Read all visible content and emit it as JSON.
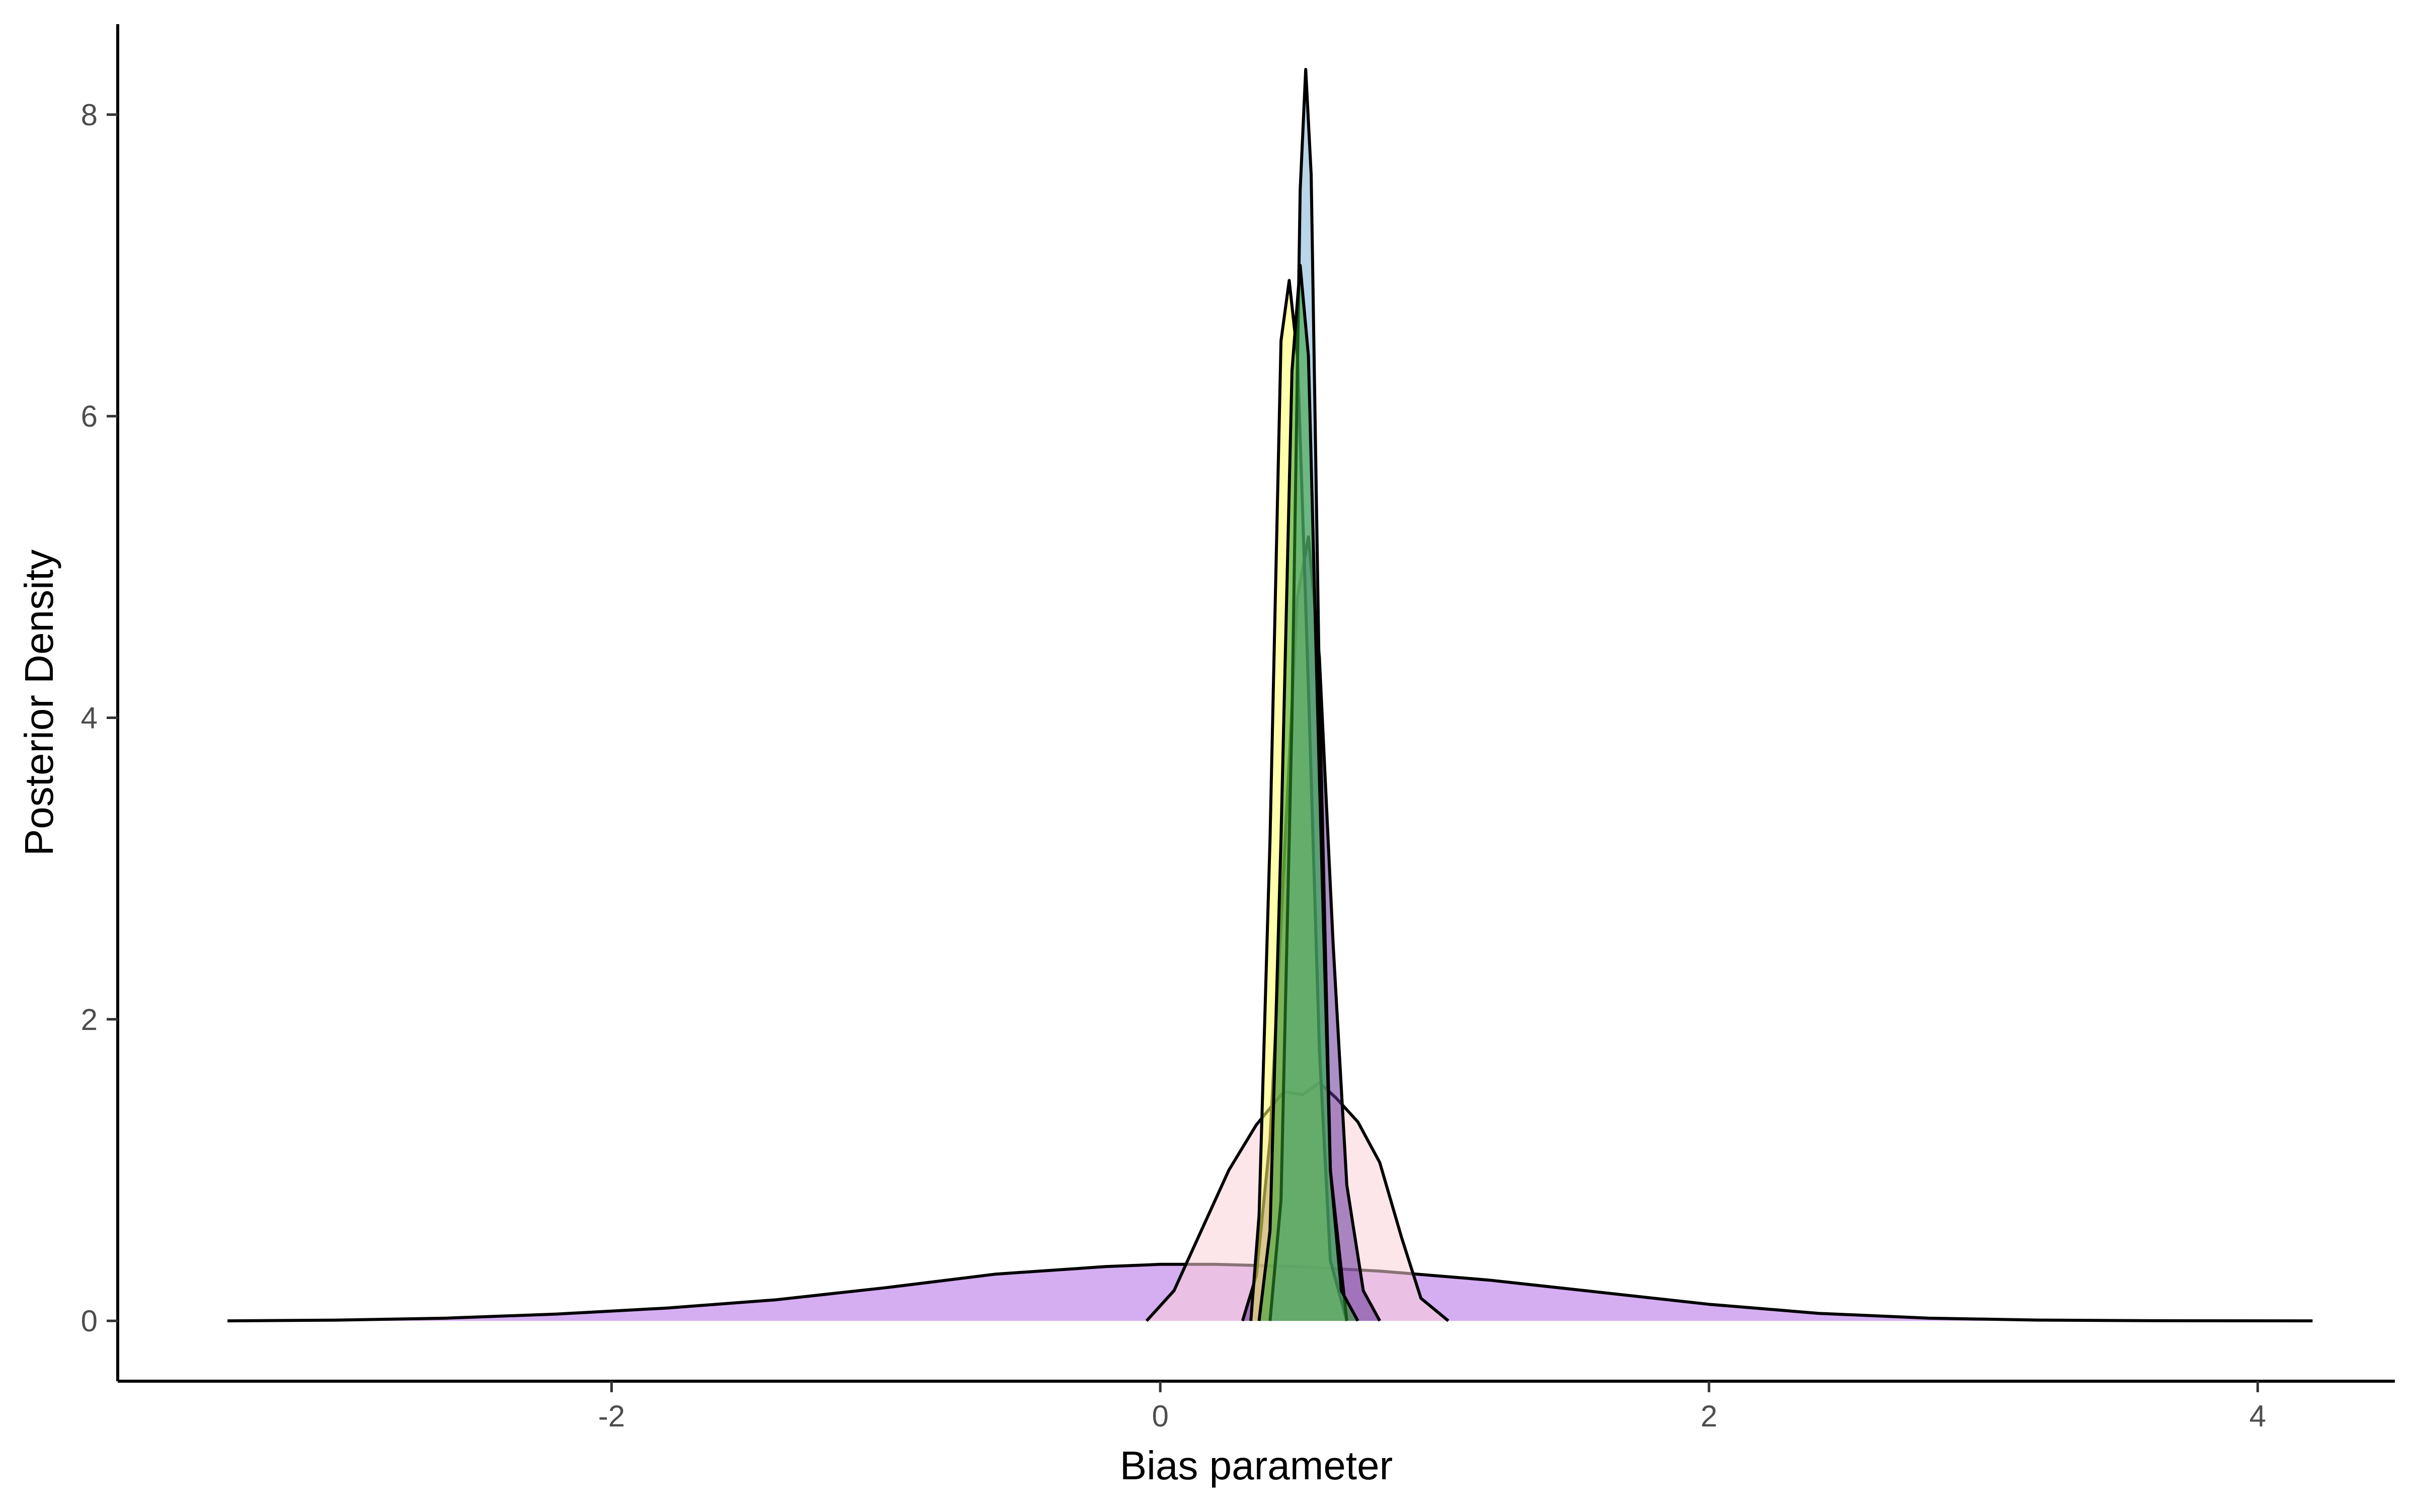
{
  "chart_data": {
    "type": "area",
    "title": "",
    "xlabel": "Bias parameter",
    "ylabel": "Posterior Density",
    "xlim": [
      -3.8,
      4.5
    ],
    "ylim": [
      -0.4,
      8.6
    ],
    "x_ticks": [
      -2,
      0,
      2,
      4
    ],
    "x_tick_labels": [
      "-2",
      "0",
      "2",
      "4"
    ],
    "y_ticks": [
      0,
      2,
      4,
      6,
      8
    ],
    "y_tick_labels": [
      "0",
      "2",
      "4",
      "6",
      "8"
    ],
    "grid": false,
    "legend": "none",
    "series": [
      {
        "color": "#b26be8",
        "points": [
          [
            -3.4,
            0
          ],
          [
            -3.0,
            0.005
          ],
          [
            -2.6,
            0.018
          ],
          [
            -2.2,
            0.045
          ],
          [
            -1.8,
            0.085
          ],
          [
            -1.4,
            0.14
          ],
          [
            -1.0,
            0.22
          ],
          [
            -0.6,
            0.31
          ],
          [
            -0.2,
            0.36
          ],
          [
            0.0,
            0.375
          ],
          [
            0.2,
            0.375
          ],
          [
            0.5,
            0.36
          ],
          [
            0.8,
            0.33
          ],
          [
            1.2,
            0.27
          ],
          [
            1.6,
            0.19
          ],
          [
            2.0,
            0.11
          ],
          [
            2.4,
            0.05
          ],
          [
            2.8,
            0.018
          ],
          [
            3.2,
            0.005
          ],
          [
            3.6,
            0.001
          ],
          [
            4.2,
            0
          ]
        ]
      },
      {
        "color": "#fbd2d8",
        "points": [
          [
            -0.05,
            0
          ],
          [
            0.05,
            0.2
          ],
          [
            0.15,
            0.6
          ],
          [
            0.25,
            1.0
          ],
          [
            0.35,
            1.3
          ],
          [
            0.45,
            1.52
          ],
          [
            0.52,
            1.5
          ],
          [
            0.58,
            1.58
          ],
          [
            0.64,
            1.48
          ],
          [
            0.72,
            1.32
          ],
          [
            0.8,
            1.05
          ],
          [
            0.88,
            0.55
          ],
          [
            0.95,
            0.15
          ],
          [
            1.05,
            0
          ]
        ]
      },
      {
        "color": "#663399",
        "points": [
          [
            0.3,
            0
          ],
          [
            0.35,
            0.3
          ],
          [
            0.4,
            1.2
          ],
          [
            0.45,
            3.0
          ],
          [
            0.5,
            4.8
          ],
          [
            0.54,
            5.2
          ],
          [
            0.58,
            4.4
          ],
          [
            0.63,
            2.5
          ],
          [
            0.68,
            0.9
          ],
          [
            0.74,
            0.2
          ],
          [
            0.8,
            0
          ]
        ]
      },
      {
        "color": "#ffff66",
        "points": [
          [
            0.33,
            0
          ],
          [
            0.36,
            0.7
          ],
          [
            0.4,
            3.2
          ],
          [
            0.44,
            6.5
          ],
          [
            0.47,
            6.9
          ],
          [
            0.5,
            6.4
          ],
          [
            0.54,
            4.2
          ],
          [
            0.58,
            1.8
          ],
          [
            0.62,
            0.4
          ],
          [
            0.68,
            0
          ]
        ]
      },
      {
        "color": "#7fb3d5",
        "points": [
          [
            0.4,
            0
          ],
          [
            0.44,
            0.8
          ],
          [
            0.48,
            4.0
          ],
          [
            0.51,
            7.5
          ],
          [
            0.53,
            8.3
          ],
          [
            0.55,
            7.6
          ],
          [
            0.58,
            4.2
          ],
          [
            0.62,
            1.0
          ],
          [
            0.68,
            0
          ]
        ]
      },
      {
        "color": "#2e9e2e",
        "points": [
          [
            0.36,
            0
          ],
          [
            0.4,
            0.6
          ],
          [
            0.44,
            3.2
          ],
          [
            0.48,
            6.3
          ],
          [
            0.51,
            7.0
          ],
          [
            0.54,
            6.4
          ],
          [
            0.58,
            3.6
          ],
          [
            0.62,
            1.0
          ],
          [
            0.66,
            0.2
          ],
          [
            0.72,
            0
          ]
        ]
      }
    ]
  }
}
